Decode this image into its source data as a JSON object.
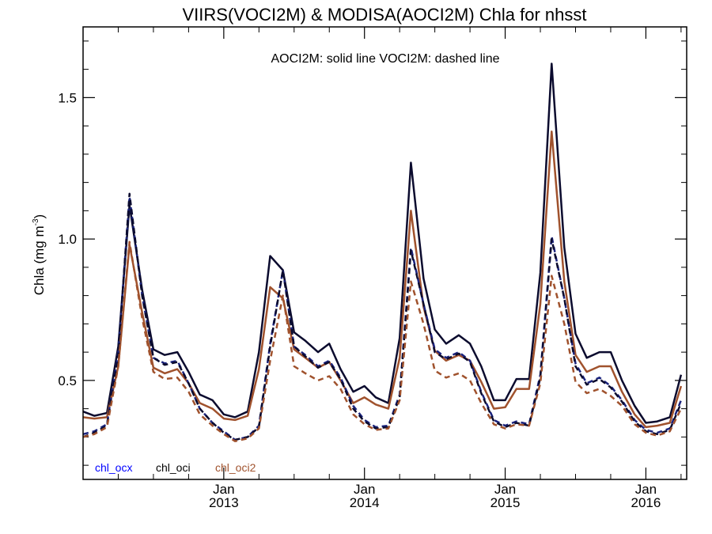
{
  "chart_data": {
    "type": "line",
    "title": "VIIRS(VOCI2M) & MODISA(AOCI2M)  Chla for nhsst",
    "annotation": "AOCI2M: solid line   VOCI2M: dashed line",
    "ylabel": "Chla (mg m",
    "ylabel_sup": "-3",
    "ylabel_close": ")",
    "ylim": [
      0.15,
      1.75
    ],
    "xlim": [
      2012.0,
      2016.29
    ],
    "yticks": [
      {
        "value": 0.5,
        "label": "0.5"
      },
      {
        "value": 1.0,
        "label": "1.0"
      },
      {
        "value": 1.5,
        "label": "1.5"
      }
    ],
    "xticks": [
      {
        "value": 2013.0,
        "month": "Jan",
        "year": "2013"
      },
      {
        "value": 2014.0,
        "month": "Jan",
        "year": "2014"
      },
      {
        "value": 2015.0,
        "month": "Jan",
        "year": "2015"
      },
      {
        "value": 2016.0,
        "month": "Jan",
        "year": "2016"
      }
    ],
    "grid": false,
    "legend": [
      {
        "label": "chl_ocx",
        "color": "#0000ff"
      },
      {
        "label": "chl_oci",
        "color": "#000000"
      },
      {
        "label": "chl_oci2",
        "color": "#a0522d"
      }
    ],
    "series": [
      {
        "name": "chl_oci",
        "product": "AOCI2M",
        "style": "solid",
        "color": "#0b0b2e",
        "x": [
          2012.0,
          2012.08,
          2012.17,
          2012.25,
          2012.33,
          2012.42,
          2012.5,
          2012.58,
          2012.67,
          2012.75,
          2012.83,
          2012.92,
          2013.0,
          2013.08,
          2013.17,
          2013.25,
          2013.33,
          2013.42,
          2013.5,
          2013.58,
          2013.67,
          2013.75,
          2013.83,
          2013.92,
          2014.0,
          2014.08,
          2014.17,
          2014.25,
          2014.33,
          2014.42,
          2014.5,
          2014.58,
          2014.67,
          2014.75,
          2014.83,
          2014.92,
          2015.0,
          2015.08,
          2015.17,
          2015.25,
          2015.33,
          2015.42,
          2015.5,
          2015.58,
          2015.67,
          2015.75,
          2015.83,
          2015.92,
          2016.0,
          2016.08,
          2016.17,
          2016.25
        ],
        "y": [
          0.39,
          0.375,
          0.385,
          0.62,
          1.12,
          0.82,
          0.61,
          0.59,
          0.6,
          0.53,
          0.45,
          0.43,
          0.38,
          0.37,
          0.39,
          0.6,
          0.94,
          0.89,
          0.67,
          0.64,
          0.6,
          0.63,
          0.54,
          0.46,
          0.48,
          0.44,
          0.42,
          0.65,
          1.27,
          0.86,
          0.68,
          0.63,
          0.66,
          0.63,
          0.55,
          0.43,
          0.43,
          0.505,
          0.505,
          0.88,
          1.62,
          0.97,
          0.665,
          0.58,
          0.6,
          0.6,
          0.5,
          0.41,
          0.35,
          0.355,
          0.37,
          0.52
        ]
      },
      {
        "name": "chl_oci2",
        "product": "AOCI2M",
        "style": "solid",
        "color": "#a0522d",
        "x": [
          2012.0,
          2012.08,
          2012.17,
          2012.25,
          2012.33,
          2012.42,
          2012.5,
          2012.58,
          2012.67,
          2012.75,
          2012.83,
          2012.92,
          2013.0,
          2013.08,
          2013.17,
          2013.25,
          2013.33,
          2013.42,
          2013.5,
          2013.58,
          2013.67,
          2013.75,
          2013.83,
          2013.92,
          2014.0,
          2014.08,
          2014.17,
          2014.25,
          2014.33,
          2014.42,
          2014.5,
          2014.58,
          2014.67,
          2014.75,
          2014.83,
          2014.92,
          2015.0,
          2015.08,
          2015.17,
          2015.25,
          2015.33,
          2015.42,
          2015.5,
          2015.58,
          2015.67,
          2015.75,
          2015.83,
          2015.92,
          2016.0,
          2016.08,
          2016.17,
          2016.25
        ],
        "y": [
          0.37,
          0.365,
          0.37,
          0.55,
          0.98,
          0.74,
          0.545,
          0.525,
          0.54,
          0.49,
          0.42,
          0.4,
          0.365,
          0.36,
          0.375,
          0.54,
          0.83,
          0.79,
          0.61,
          0.58,
          0.545,
          0.565,
          0.5,
          0.42,
          0.44,
          0.415,
          0.4,
          0.58,
          1.1,
          0.76,
          0.605,
          0.57,
          0.59,
          0.57,
          0.495,
          0.4,
          0.405,
          0.47,
          0.47,
          0.77,
          1.38,
          0.85,
          0.59,
          0.53,
          0.55,
          0.55,
          0.46,
          0.38,
          0.335,
          0.34,
          0.35,
          0.48
        ]
      },
      {
        "name": "chl_ocx",
        "product": "VOCI2M",
        "style": "dashed",
        "color": "#1a237e",
        "x": [
          2012.0,
          2012.08,
          2012.17,
          2012.25,
          2012.33,
          2012.42,
          2012.5,
          2012.58,
          2012.67,
          2012.75,
          2012.83,
          2012.92,
          2013.0,
          2013.08,
          2013.17,
          2013.25,
          2013.33,
          2013.42,
          2013.5,
          2013.58,
          2013.67,
          2013.75,
          2013.83,
          2013.92,
          2014.0,
          2014.08,
          2014.17,
          2014.25,
          2014.33,
          2014.42,
          2014.5,
          2014.58,
          2014.67,
          2014.75,
          2014.83,
          2014.92,
          2015.0,
          2015.08,
          2015.17,
          2015.25,
          2015.33,
          2015.42,
          2015.5,
          2015.58,
          2015.67,
          2015.75,
          2015.83,
          2015.92,
          2016.0,
          2016.08,
          2016.17,
          2016.25
        ],
        "y": [
          0.31,
          0.32,
          0.345,
          0.6,
          1.15,
          0.8,
          0.58,
          0.56,
          0.57,
          0.49,
          0.4,
          0.35,
          0.32,
          0.29,
          0.3,
          0.34,
          0.63,
          0.89,
          0.62,
          0.59,
          0.55,
          0.57,
          0.51,
          0.41,
          0.36,
          0.335,
          0.34,
          0.45,
          0.97,
          0.77,
          0.61,
          0.58,
          0.6,
          0.57,
          0.46,
          0.36,
          0.34,
          0.355,
          0.345,
          0.52,
          1.01,
          0.79,
          0.56,
          0.49,
          0.51,
          0.48,
          0.43,
          0.36,
          0.325,
          0.315,
          0.33,
          0.43
        ]
      },
      {
        "name": "chl_oci",
        "product": "VOCI2M",
        "style": "dashed",
        "color": "#0b0b2e",
        "x": [
          2012.0,
          2012.08,
          2012.17,
          2012.25,
          2012.33,
          2012.42,
          2012.5,
          2012.58,
          2012.67,
          2012.75,
          2012.83,
          2012.92,
          2013.0,
          2013.08,
          2013.17,
          2013.25,
          2013.33,
          2013.42,
          2013.5,
          2013.58,
          2013.67,
          2013.75,
          2013.83,
          2013.92,
          2014.0,
          2014.08,
          2014.17,
          2014.25,
          2014.33,
          2014.42,
          2014.5,
          2014.58,
          2014.67,
          2014.75,
          2014.83,
          2014.92,
          2015.0,
          2015.08,
          2015.17,
          2015.25,
          2015.33,
          2015.42,
          2015.5,
          2015.58,
          2015.67,
          2015.75,
          2015.83,
          2015.92,
          2016.0,
          2016.08,
          2016.17,
          2016.25
        ],
        "y": [
          0.3,
          0.315,
          0.34,
          0.59,
          1.16,
          0.8,
          0.58,
          0.555,
          0.565,
          0.49,
          0.4,
          0.35,
          0.315,
          0.29,
          0.3,
          0.335,
          0.62,
          0.89,
          0.62,
          0.585,
          0.545,
          0.565,
          0.505,
          0.4,
          0.355,
          0.33,
          0.335,
          0.44,
          0.96,
          0.77,
          0.6,
          0.575,
          0.595,
          0.565,
          0.455,
          0.355,
          0.335,
          0.35,
          0.34,
          0.51,
          1.0,
          0.79,
          0.55,
          0.485,
          0.505,
          0.475,
          0.425,
          0.355,
          0.32,
          0.31,
          0.325,
          0.42
        ]
      },
      {
        "name": "chl_oci2",
        "product": "VOCI2M",
        "style": "dashed",
        "color": "#a0522d",
        "x": [
          2012.0,
          2012.08,
          2012.17,
          2012.25,
          2012.33,
          2012.42,
          2012.5,
          2012.58,
          2012.67,
          2012.75,
          2012.83,
          2012.92,
          2013.0,
          2013.08,
          2013.17,
          2013.25,
          2013.33,
          2013.42,
          2013.5,
          2013.58,
          2013.67,
          2013.75,
          2013.83,
          2013.92,
          2014.0,
          2014.08,
          2014.17,
          2014.25,
          2014.33,
          2014.42,
          2014.5,
          2014.58,
          2014.67,
          2014.75,
          2014.83,
          2014.92,
          2015.0,
          2015.08,
          2015.17,
          2015.25,
          2015.33,
          2015.42,
          2015.5,
          2015.58,
          2015.67,
          2015.75,
          2015.83,
          2015.92,
          2016.0,
          2016.08,
          2016.17,
          2016.25
        ],
        "y": [
          0.3,
          0.31,
          0.335,
          0.55,
          0.99,
          0.72,
          0.53,
          0.505,
          0.51,
          0.46,
          0.38,
          0.34,
          0.31,
          0.285,
          0.295,
          0.33,
          0.57,
          0.8,
          0.55,
          0.525,
          0.5,
          0.515,
          0.47,
          0.38,
          0.345,
          0.325,
          0.33,
          0.43,
          0.85,
          0.7,
          0.535,
          0.51,
          0.525,
          0.5,
          0.42,
          0.345,
          0.33,
          0.345,
          0.34,
          0.49,
          0.87,
          0.7,
          0.495,
          0.455,
          0.47,
          0.445,
          0.41,
          0.345,
          0.315,
          0.305,
          0.32,
          0.4
        ]
      }
    ]
  }
}
